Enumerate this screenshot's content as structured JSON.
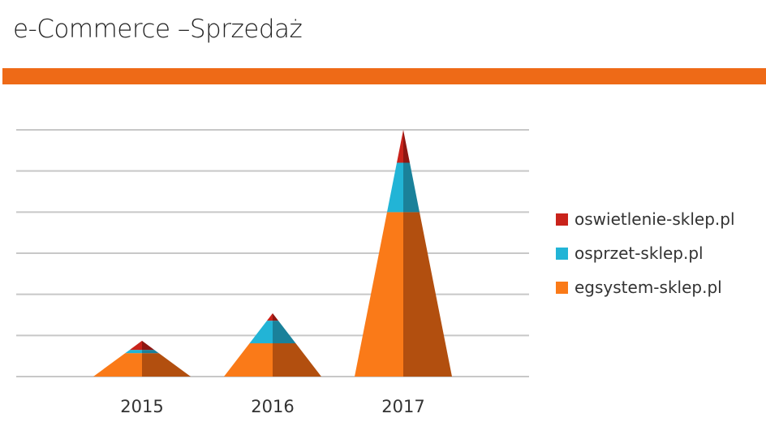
{
  "title": "e-Commerce –Sprzedaż",
  "colors": {
    "accent_bar": "#EE6A17"
  },
  "chart_data": {
    "type": "bar",
    "style": "stacked-pyramid",
    "categories": [
      "2015",
      "2016",
      "2017"
    ],
    "series": [
      {
        "name": "egsystem-sklep.pl",
        "color": "#FA7A18",
        "dark": "#B24F0F",
        "values": [
          0.57,
          0.81,
          4.0
        ]
      },
      {
        "name": "osprzet-sklep.pl",
        "color": "#22B4D6",
        "dark": "#1A819A",
        "values": [
          0.08,
          0.55,
          1.2
        ]
      },
      {
        "name": "oswietlenie-sklep.pl",
        "color": "#C9231B",
        "dark": "#8E1712",
        "values": [
          0.22,
          0.18,
          0.8
        ]
      }
    ],
    "ylim": [
      0,
      6
    ],
    "grid": true,
    "y_tick_labels": false,
    "legend": "right"
  }
}
